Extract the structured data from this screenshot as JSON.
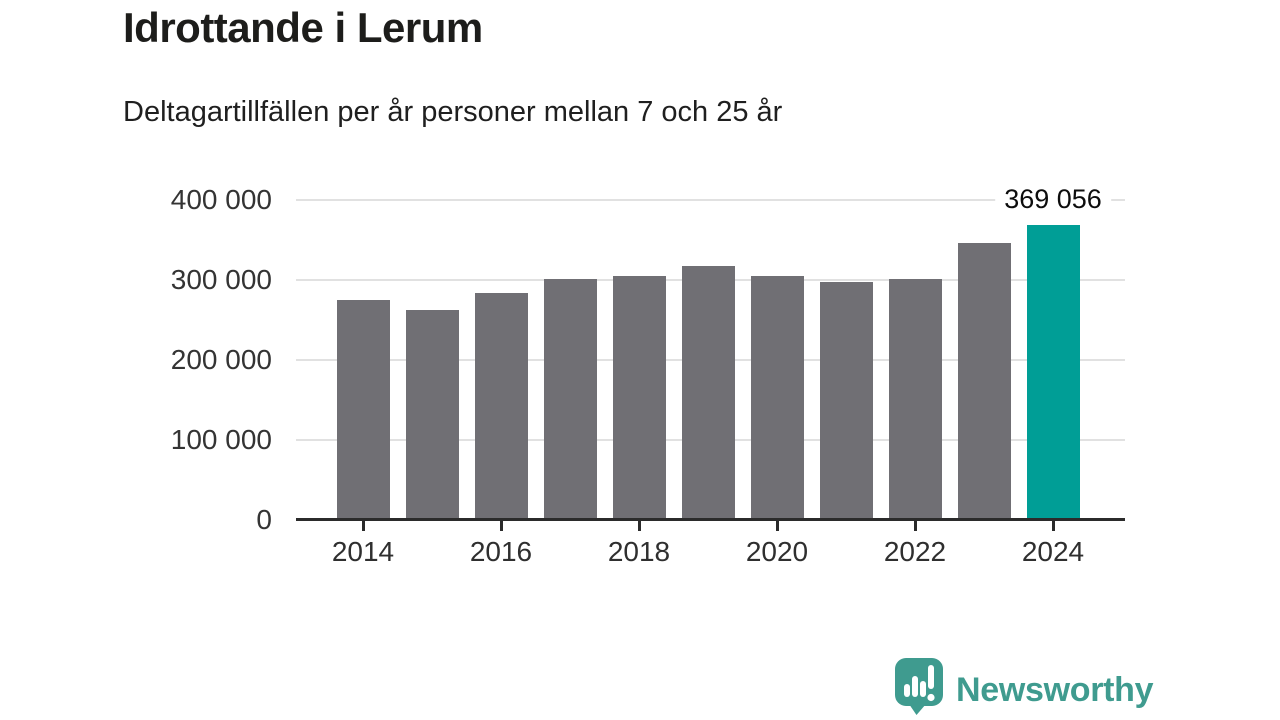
{
  "chart_data": {
    "type": "bar",
    "title": "Idrottande i Lerum",
    "subtitle": "Deltagartillfällen per år personer mellan 7 och 25 år",
    "categories": [
      "2014",
      "2015",
      "2016",
      "2017",
      "2018",
      "2019",
      "2020",
      "2021",
      "2022",
      "2023",
      "2024"
    ],
    "values": [
      275000,
      262000,
      284000,
      301000,
      305000,
      317000,
      305000,
      297000,
      301000,
      346000,
      369056
    ],
    "highlight_category": "2024",
    "annotation": {
      "category": "2024",
      "label": "369 056"
    },
    "ylim": [
      0,
      400000
    ],
    "yticks": [
      {
        "value": 0,
        "label": "0"
      },
      {
        "value": 100000,
        "label": "100 000"
      },
      {
        "value": 200000,
        "label": "200 000"
      },
      {
        "value": 300000,
        "label": "300 000"
      },
      {
        "value": 400000,
        "label": "400 000"
      }
    ],
    "xtick_labels": [
      "2014",
      "2016",
      "2018",
      "2020",
      "2022",
      "2024"
    ],
    "grid": "horizontal",
    "legend": "none",
    "colors": {
      "bar": "#706f74",
      "highlight": "#009e96",
      "gridline": "#e1e1e1",
      "axis": "#2b2b2b"
    }
  },
  "footer": {
    "brand": "Newsworthy",
    "brand_color": "#3f9b8f",
    "badge_color": "#3f9b8f",
    "badge_icon": "bar-chart-exclamation-bubble"
  }
}
